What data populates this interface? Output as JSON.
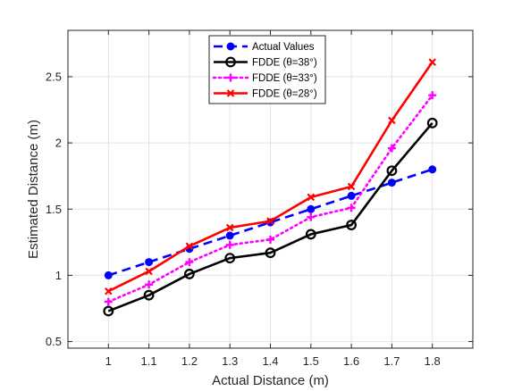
{
  "chart_data": {
    "type": "line",
    "xlabel": "Actual Distance (m)",
    "ylabel": "Estimated Distance (m)",
    "xlim": [
      0.9,
      1.9
    ],
    "ylim": [
      0.45,
      2.85
    ],
    "xticks": [
      1,
      1.1,
      1.2,
      1.3,
      1.4,
      1.5,
      1.6,
      1.7,
      1.8
    ],
    "xtick_labels": [
      "1",
      "1.1",
      "1.2",
      "1.3",
      "1.4",
      "1.5",
      "1.6",
      "1.7",
      "1.8"
    ],
    "yticks": [
      0.5,
      1,
      1.5,
      2,
      2.5
    ],
    "ytick_labels": [
      "0.5",
      "1",
      "1.5",
      "2",
      "2.5"
    ],
    "grid": true,
    "legend_position": "top-center",
    "x": [
      1,
      1.1,
      1.2,
      1.3,
      1.4,
      1.5,
      1.6,
      1.7,
      1.8
    ],
    "series": [
      {
        "name": "Actual Values",
        "color": "#0000ff",
        "style": "dashed",
        "marker": "dot",
        "values": [
          1.0,
          1.1,
          1.2,
          1.3,
          1.4,
          1.5,
          1.6,
          1.7,
          1.8
        ]
      },
      {
        "name": "FDDE (θ=38°)",
        "color": "#000000",
        "style": "solid",
        "marker": "circle",
        "values": [
          0.73,
          0.85,
          1.01,
          1.13,
          1.17,
          1.31,
          1.38,
          1.79,
          2.15
        ]
      },
      {
        "name": "FDDE (θ=33°)",
        "color": "#ff00ff",
        "style": "dotted",
        "marker": "plus",
        "values": [
          0.8,
          0.93,
          1.1,
          1.23,
          1.27,
          1.44,
          1.51,
          1.96,
          2.36
        ]
      },
      {
        "name": "FDDE (θ=28°)",
        "color": "#ff0000",
        "style": "solid",
        "marker": "x",
        "values": [
          0.88,
          1.03,
          1.22,
          1.36,
          1.41,
          1.59,
          1.67,
          2.17,
          2.61
        ]
      }
    ]
  }
}
